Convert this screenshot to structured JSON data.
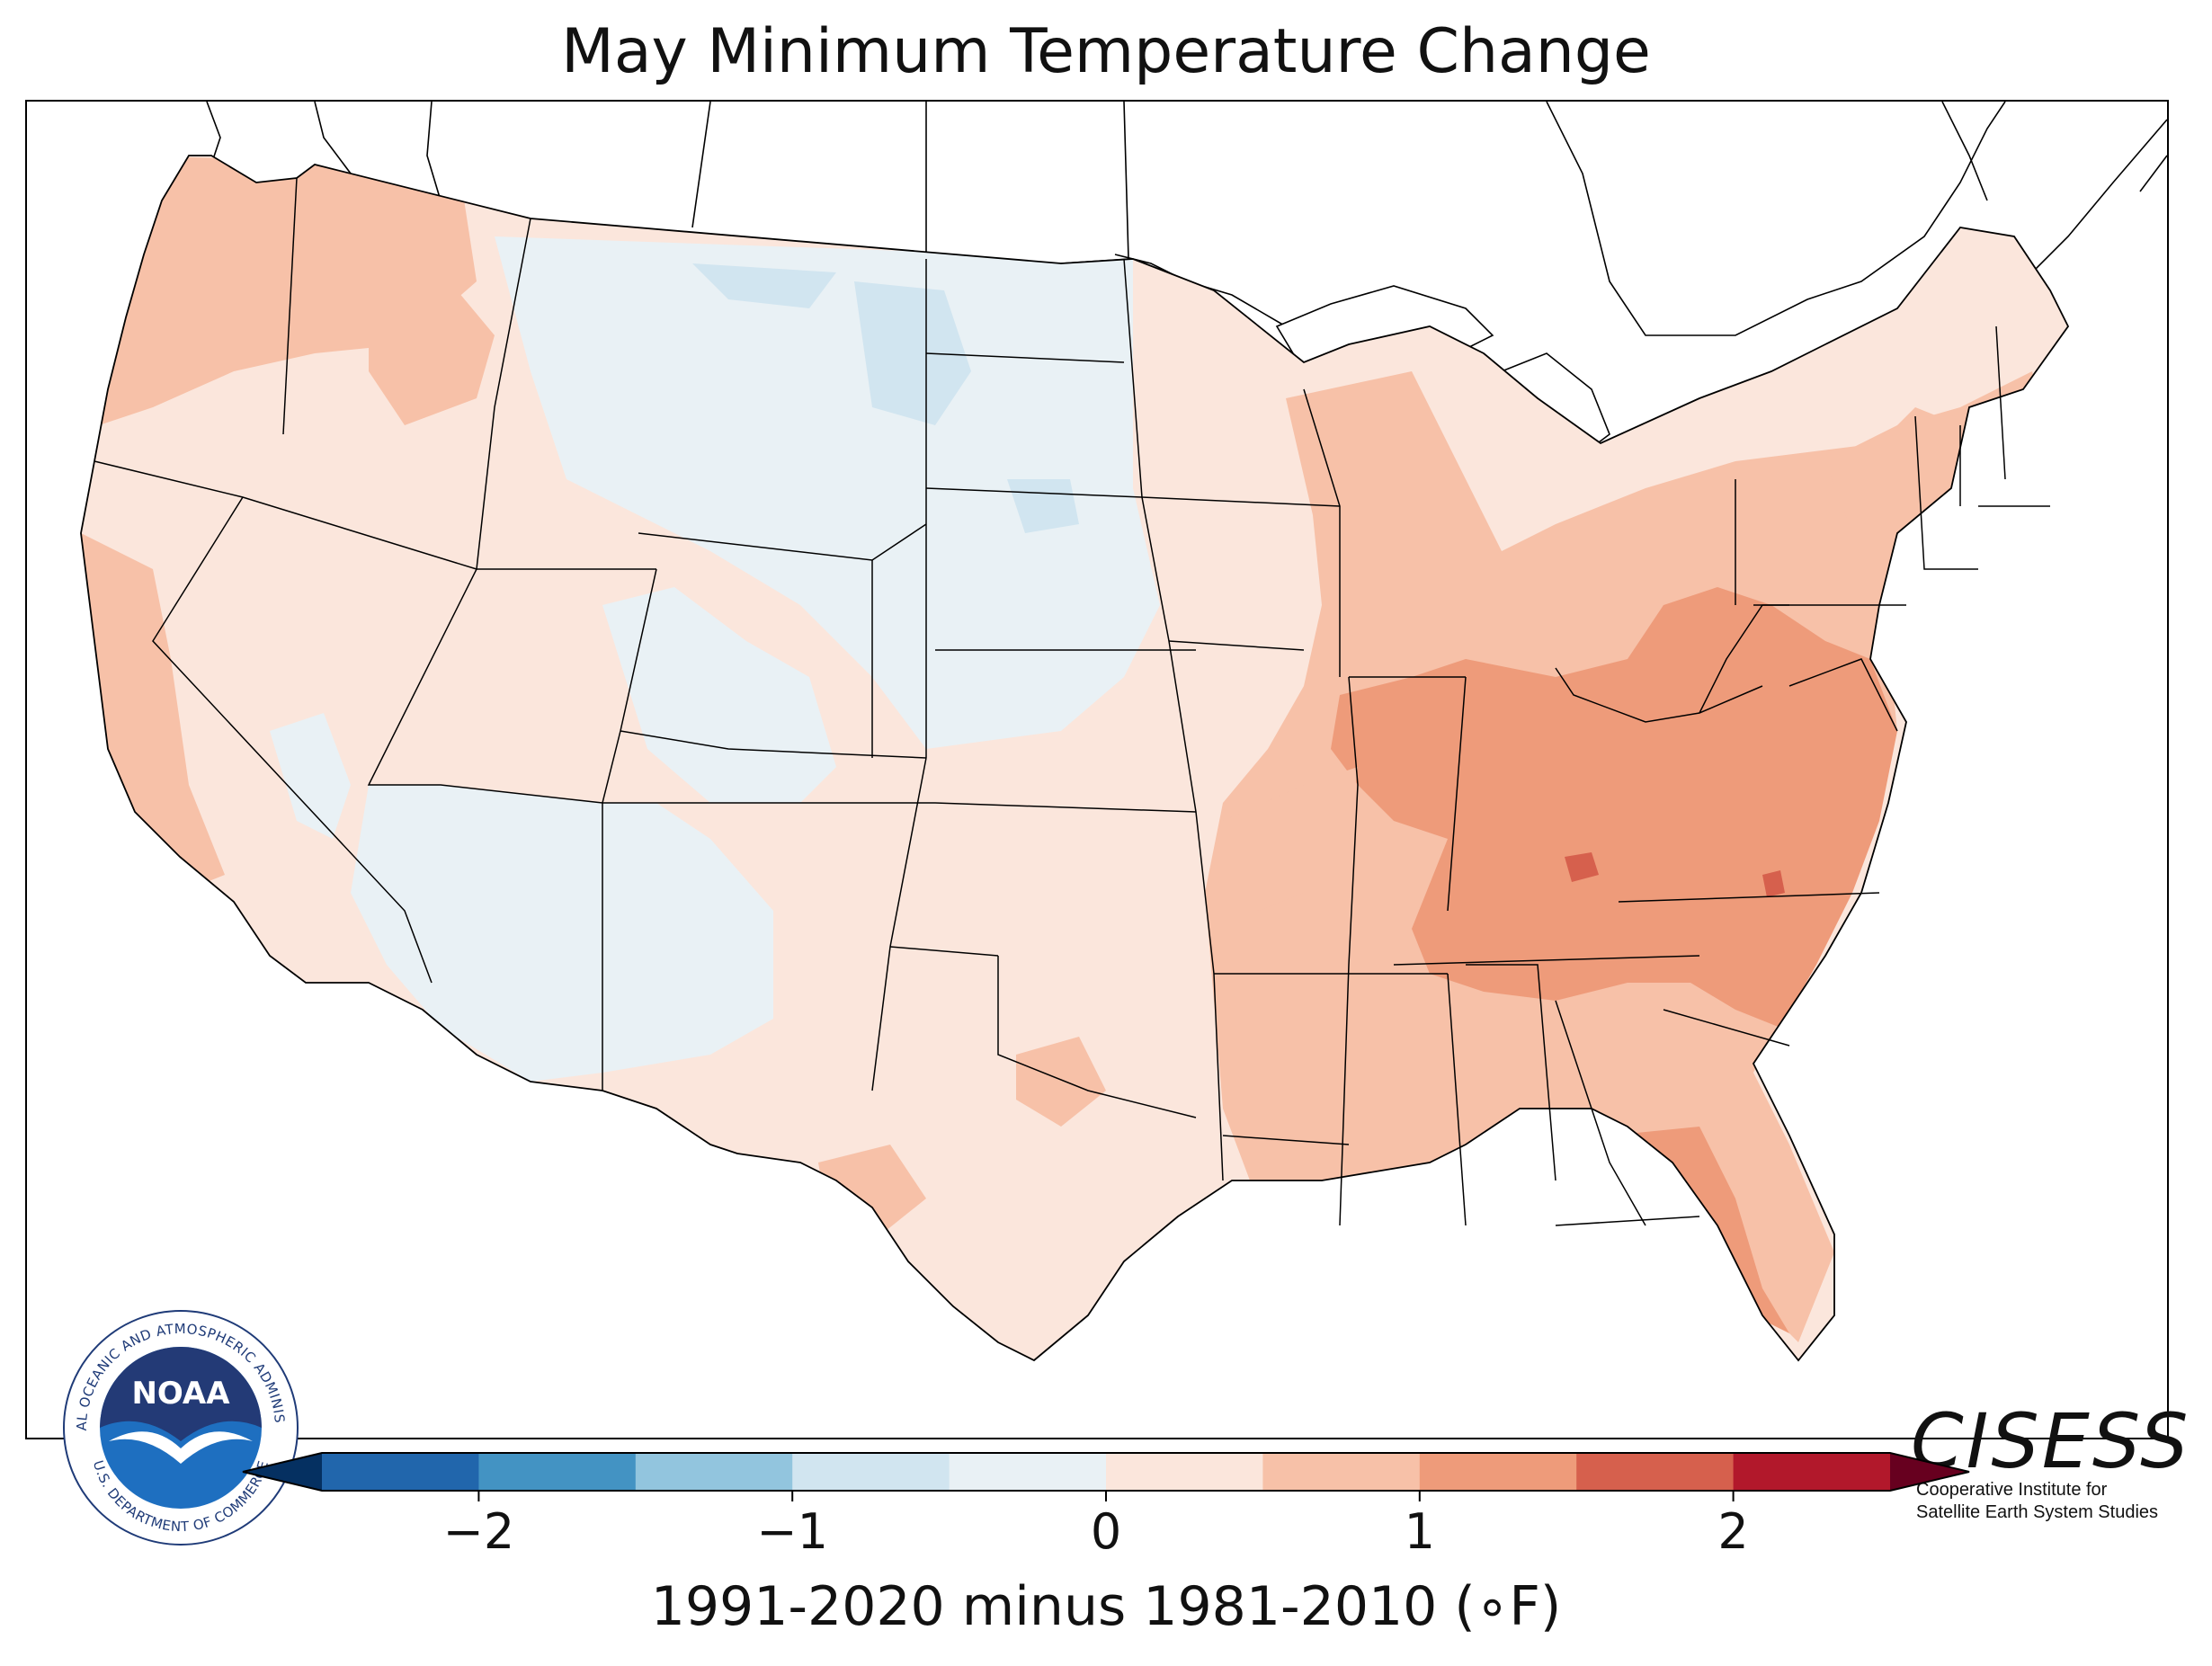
{
  "title": "May Minimum Temperature Change",
  "colorbar": {
    "label": "1991-2020 minus 1981-2010 (∘F)",
    "min": -2.5,
    "max": 2.5,
    "step": 0.5,
    "extend": "both",
    "ticks": [
      {
        "value": -2,
        "label": "−2"
      },
      {
        "value": -1,
        "label": "−1"
      },
      {
        "value": 0,
        "label": "0"
      },
      {
        "value": 1,
        "label": "1"
      },
      {
        "value": 2,
        "label": "2"
      }
    ],
    "colors": [
      "#2166ac",
      "#4393c3",
      "#92c5de",
      "#d1e5f0",
      "#e9f1f5",
      "#fbe6dc",
      "#f7c1a8",
      "#ee9b7a",
      "#d6604d",
      "#b2182b"
    ],
    "under_color": "#053061",
    "over_color": "#67001f"
  },
  "logos": {
    "noaa": {
      "text": "NOAA",
      "ring_text": "NATIONAL OCEANIC AND ATMOSPHERIC ADMINISTRATION",
      "bottom_text": "U.S. DEPARTMENT OF COMMERCE"
    },
    "cisess": {
      "name": "CISESS",
      "line1": "Cooperative Institute for",
      "line2": "Satellite Earth System Studies"
    }
  },
  "map_regions": [
    {
      "name": "pacific-northwest",
      "value": 0.7
    },
    {
      "name": "california-coast",
      "value": 0.5
    },
    {
      "name": "great-basin",
      "value": 0.3
    },
    {
      "name": "desert-southwest",
      "value": -0.2
    },
    {
      "name": "northern-plains",
      "value": -0.4
    },
    {
      "name": "central-plains",
      "value": -0.2
    },
    {
      "name": "texas-southern-plains",
      "value": 0.3
    },
    {
      "name": "upper-midwest",
      "value": 0.3
    },
    {
      "name": "ohio-valley",
      "value": 1.2
    },
    {
      "name": "southeast",
      "value": 0.9
    },
    {
      "name": "mid-atlantic",
      "value": 1.3
    },
    {
      "name": "northeast",
      "value": 0.8
    },
    {
      "name": "florida",
      "value": 0.9
    }
  ]
}
